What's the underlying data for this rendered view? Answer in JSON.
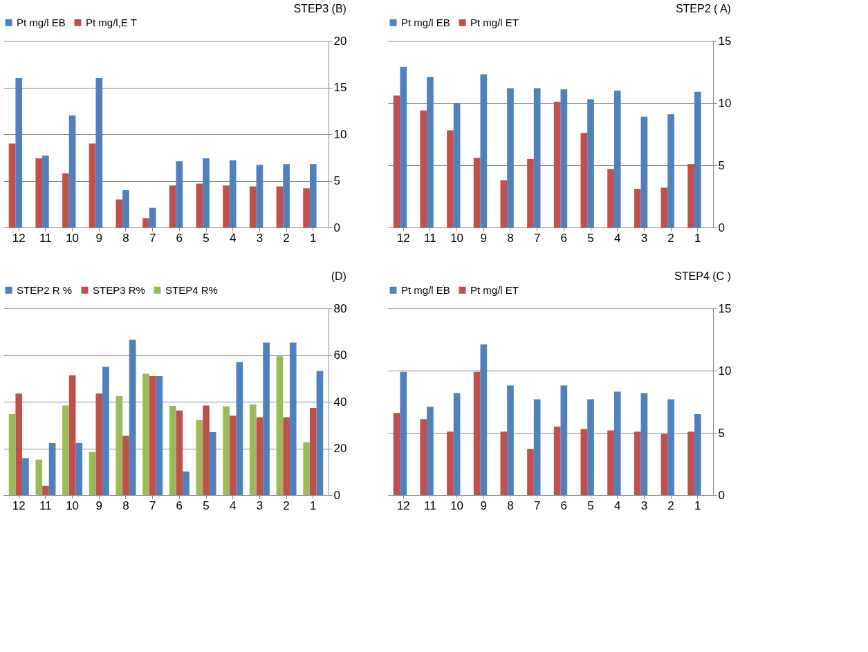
{
  "chart_data": [
    {
      "type": "bar",
      "title": "STEP3    (B)",
      "categories": [
        "12",
        "11",
        "10",
        "9",
        "8",
        "7",
        "6",
        "5",
        "4",
        "3",
        "2",
        "1"
      ],
      "ylim": [
        0,
        20
      ],
      "yticks": [
        0,
        5,
        10,
        15,
        20
      ],
      "grid": "y",
      "legend": "top",
      "series": [
        {
          "name": "Pt mg/l EB",
          "color": "#4f81bd",
          "values": [
            16.0,
            7.7,
            12.0,
            16.0,
            4.0,
            2.1,
            7.1,
            7.4,
            7.2,
            6.7,
            6.8,
            6.8
          ]
        },
        {
          "name": "Pt mg/l,E T",
          "color": "#c0504d",
          "values": [
            9.0,
            7.4,
            5.8,
            9.0,
            3.0,
            1.0,
            4.5,
            4.7,
            4.5,
            4.4,
            4.4,
            4.2
          ]
        }
      ]
    },
    {
      "type": "bar",
      "title": "STEP2     ( A)",
      "categories": [
        "12",
        "11",
        "10",
        "9",
        "8",
        "7",
        "6",
        "5",
        "4",
        "3",
        "2",
        "1"
      ],
      "ylim": [
        0,
        15
      ],
      "yticks": [
        0,
        5,
        10,
        15
      ],
      "grid": "y",
      "legend": "top",
      "series": [
        {
          "name": "Pt mg/l EB",
          "color": "#4f81bd",
          "values": [
            12.9,
            12.1,
            10.0,
            12.3,
            11.2,
            11.2,
            11.1,
            10.3,
            11.0,
            8.9,
            9.1,
            10.9
          ]
        },
        {
          "name": "Pt mg/l ET",
          "color": "#c0504d",
          "values": [
            10.6,
            9.4,
            7.8,
            5.6,
            3.8,
            5.5,
            10.1,
            7.6,
            4.7,
            3.1,
            3.2,
            5.1
          ]
        }
      ]
    },
    {
      "type": "bar",
      "title": "(D)",
      "categories": [
        "12",
        "11",
        "10",
        "9",
        "8",
        "7",
        "6",
        "5",
        "4",
        "3",
        "2",
        "1"
      ],
      "ylim": [
        0,
        80
      ],
      "yticks": [
        0,
        20,
        40,
        60,
        80
      ],
      "grid": "y",
      "legend": "top",
      "series": [
        {
          "name": "STEP2 R %",
          "color": "#4f81bd",
          "values": [
            15.8,
            22.3,
            22.3,
            55,
            66.5,
            51,
            10.1,
            27,
            57,
            65.3,
            65.3,
            53.2
          ]
        },
        {
          "name": "STEP3 R%",
          "color": "#c0504d",
          "values": [
            43.5,
            3.9,
            51.3,
            43.5,
            25.4,
            51,
            36.2,
            38.4,
            34,
            33.3,
            33.3,
            37.3
          ]
        },
        {
          "name": "STEP4 R%",
          "color": "#9bbb59",
          "values": [
            34.7,
            15.2,
            38.4,
            18.4,
            42.4,
            52,
            38.2,
            32.2,
            38,
            38.8,
            59.5,
            22.6
          ]
        }
      ]
    },
    {
      "type": "bar",
      "title": "STEP4    (C )",
      "categories": [
        "12",
        "11",
        "10",
        "9",
        "8",
        "7",
        "6",
        "5",
        "4",
        "3",
        "2",
        "1"
      ],
      "ylim": [
        0,
        15
      ],
      "yticks": [
        0,
        5,
        10,
        15
      ],
      "grid": "y",
      "legend": "top",
      "series": [
        {
          "name": "Pt mg/l EB",
          "color": "#4f81bd",
          "values": [
            9.9,
            7.1,
            8.2,
            12.1,
            8.8,
            7.7,
            8.8,
            7.7,
            8.3,
            8.2,
            7.7,
            6.5
          ]
        },
        {
          "name": "Pt mg/l ET",
          "color": "#c0504d",
          "values": [
            6.6,
            6.1,
            5.1,
            9.9,
            5.1,
            3.7,
            5.5,
            5.3,
            5.2,
            5.1,
            4.9,
            5.1
          ]
        }
      ]
    }
  ]
}
